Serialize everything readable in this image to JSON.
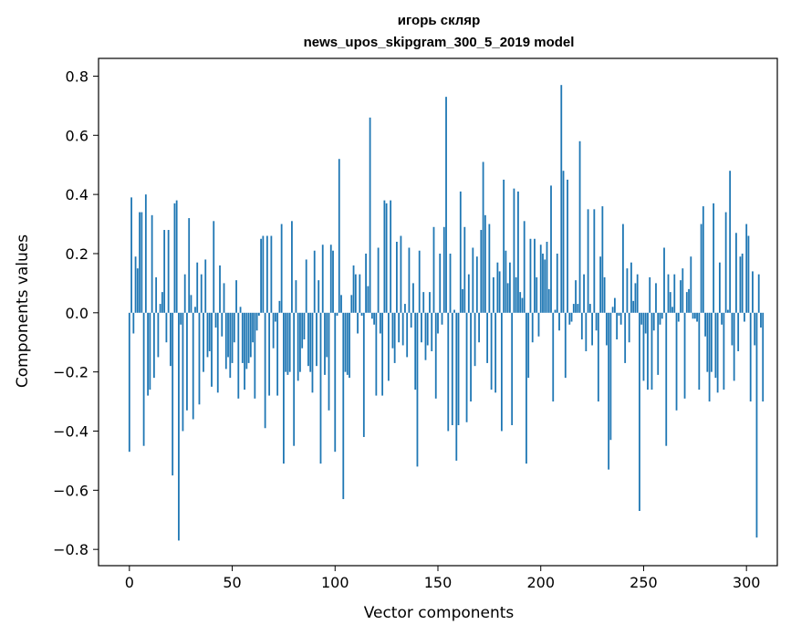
{
  "chart_data": {
    "type": "bar",
    "title": "игорь скляр",
    "subtitle": "news_upos_skipgram_300_5_2019 model",
    "xlabel": "Vector components",
    "ylabel": "Components values",
    "xlim": [
      -15,
      315
    ],
    "ylim": [
      -0.855,
      0.86
    ],
    "x_ticks": [
      0,
      50,
      100,
      150,
      200,
      250,
      300
    ],
    "y_ticks": [
      -0.8,
      -0.6,
      -0.4,
      -0.2,
      0.0,
      0.2,
      0.4,
      0.6,
      0.8
    ],
    "x_tick_labels": [
      "0",
      "50",
      "100",
      "150",
      "200",
      "250",
      "300"
    ],
    "y_tick_labels": [
      "−0.8",
      "−0.6",
      "−0.4",
      "−0.2",
      "0.0",
      "0.2",
      "0.4",
      "0.6",
      "0.8"
    ],
    "bar_color": "#1f77b4",
    "values": [
      -0.47,
      0.39,
      -0.07,
      0.19,
      0.15,
      0.34,
      0.34,
      -0.45,
      0.4,
      -0.28,
      -0.26,
      0.33,
      -0.22,
      0.12,
      -0.15,
      0.03,
      0.07,
      0.28,
      -0.1,
      0.28,
      -0.18,
      -0.55,
      0.37,
      0.38,
      -0.77,
      -0.04,
      -0.4,
      0.13,
      -0.33,
      0.32,
      0.06,
      -0.36,
      0.02,
      0.17,
      -0.31,
      0.13,
      -0.2,
      0.18,
      -0.15,
      -0.13,
      -0.25,
      0.31,
      -0.05,
      -0.27,
      0.16,
      -0.08,
      0.1,
      -0.19,
      -0.15,
      -0.22,
      -0.17,
      -0.1,
      0.11,
      -0.29,
      0.02,
      -0.17,
      -0.26,
      -0.19,
      -0.17,
      -0.15,
      -0.1,
      -0.29,
      -0.06,
      -0.01,
      0.25,
      0.26,
      -0.39,
      0.26,
      -0.28,
      0.26,
      -0.12,
      -0.03,
      -0.28,
      0.04,
      0.3,
      -0.51,
      -0.2,
      -0.21,
      -0.2,
      0.31,
      -0.45,
      0.11,
      -0.23,
      -0.2,
      -0.12,
      -0.09,
      0.18,
      -0.18,
      -0.2,
      -0.27,
      0.21,
      -0.18,
      0.11,
      -0.51,
      0.23,
      -0.21,
      -0.15,
      -0.33,
      0.23,
      0.21,
      -0.47,
      -0.01,
      0.52,
      0.06,
      -0.63,
      -0.2,
      -0.21,
      -0.22,
      0.06,
      0.16,
      0.13,
      -0.07,
      0.13,
      -0.01,
      -0.42,
      0.2,
      0.09,
      0.66,
      -0.02,
      -0.04,
      -0.28,
      0.22,
      -0.07,
      -0.28,
      0.38,
      0.37,
      -0.23,
      0.38,
      -0.12,
      -0.17,
      0.24,
      -0.1,
      0.26,
      -0.11,
      0.03,
      -0.15,
      0.22,
      -0.05,
      0.1,
      -0.26,
      -0.52,
      0.21,
      -0.1,
      0.07,
      -0.16,
      -0.11,
      0.07,
      -0.13,
      0.29,
      -0.29,
      -0.07,
      0.2,
      -0.04,
      0.29,
      0.73,
      -0.4,
      0.2,
      -0.38,
      0.01,
      -0.5,
      -0.38,
      0.41,
      0.08,
      0.29,
      -0.37,
      0.13,
      -0.3,
      0.22,
      -0.18,
      0.19,
      -0.1,
      0.28,
      0.51,
      0.33,
      -0.17,
      0.3,
      -0.26,
      0.12,
      -0.27,
      0.17,
      0.14,
      -0.4,
      0.45,
      0.21,
      0.1,
      0.17,
      -0.38,
      0.42,
      0.12,
      0.41,
      0.07,
      0.05,
      0.31,
      -0.51,
      -0.22,
      0.25,
      -0.1,
      0.25,
      0.12,
      -0.08,
      0.23,
      0.2,
      0.18,
      0.24,
      0.08,
      0.43,
      -0.3,
      0.01,
      0.2,
      -0.06,
      0.77,
      0.48,
      -0.22,
      0.45,
      -0.04,
      -0.03,
      0.03,
      0.11,
      0.03,
      0.58,
      -0.09,
      0.13,
      -0.13,
      0.35,
      0.03,
      -0.11,
      0.35,
      -0.06,
      -0.3,
      0.19,
      0.36,
      0.12,
      -0.11,
      -0.53,
      -0.43,
      0.02,
      0.05,
      -0.09,
      -0.01,
      -0.04,
      0.3,
      -0.17,
      0.15,
      -0.1,
      0.17,
      0.04,
      0.1,
      0.13,
      -0.67,
      -0.04,
      -0.23,
      -0.07,
      -0.26,
      0.12,
      -0.26,
      -0.06,
      0.1,
      -0.21,
      -0.04,
      -0.02,
      0.22,
      -0.45,
      0.13,
      0.07,
      0.02,
      0.13,
      -0.33,
      -0.03,
      0.11,
      0.15,
      -0.29,
      0.07,
      0.08,
      0.19,
      -0.02,
      -0.02,
      -0.03,
      -0.26,
      0.3,
      0.36,
      -0.08,
      -0.2,
      -0.3,
      -0.2,
      0.37,
      -0.22,
      -0.27,
      0.17,
      -0.04,
      -0.26,
      0.34,
      0.01,
      0.48,
      -0.11,
      -0.23,
      0.27,
      -0.13,
      0.19,
      0.2,
      -0.03,
      0.3,
      0.26,
      -0.3,
      0.14,
      -0.11,
      -0.76,
      0.13,
      -0.05,
      -0.3
    ]
  }
}
